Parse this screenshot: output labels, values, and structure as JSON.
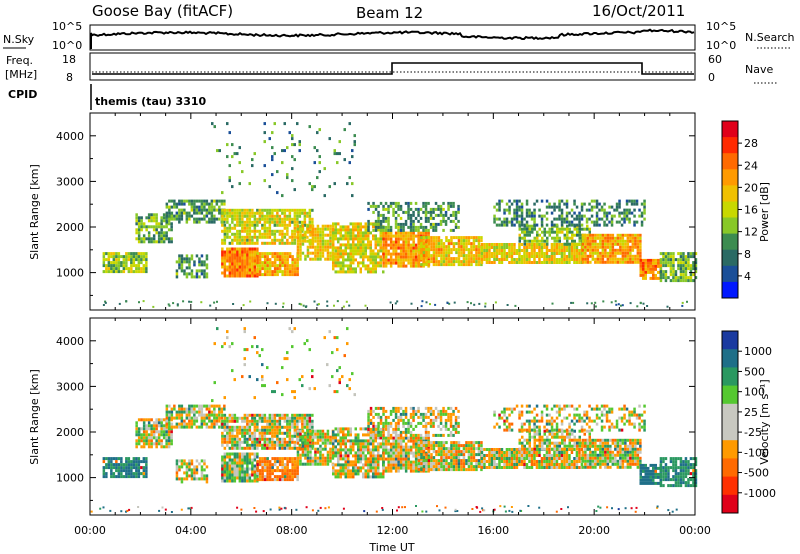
{
  "header": {
    "station": "Goose Bay (fitACF)",
    "beam": "Beam 12",
    "date": "16/Oct/2011"
  },
  "top_panels": {
    "noise": {
      "left_label": "N.Sky",
      "left_ticks": [
        "10^5",
        "10^0"
      ],
      "right_label": "N.Search",
      "right_ticks": [
        "10^5",
        "10^0"
      ]
    },
    "freq": {
      "left_label_1": "Freq.",
      "left_label_2": "[MHz]",
      "left_ticks": [
        "18",
        "8"
      ],
      "right_label": "Nave",
      "right_ticks": [
        "60",
        "0"
      ]
    },
    "cpid": {
      "left_label": "CPID",
      "value": "themis (tau) 3310"
    }
  },
  "x_axis": {
    "label": "Time UT",
    "ticks": [
      "00:00",
      "04:00",
      "08:00",
      "12:00",
      "16:00",
      "20:00",
      "00:00"
    ]
  },
  "colorbars": {
    "power": {
      "label": "Power [dB]",
      "ticks": [
        "28",
        "24",
        "20",
        "16",
        "12",
        "8",
        "4"
      ],
      "colors": [
        "#e0001a",
        "#ff2a00",
        "#ff6a00",
        "#ff9a00",
        "#f0c000",
        "#c8d800",
        "#88c828",
        "#3c8c50",
        "#2a6a64",
        "#1a4f98",
        "#0018ff"
      ]
    },
    "velocity": {
      "label": "Velocity [m s⁻¹]",
      "ticks": [
        "1000",
        "500",
        "100",
        "25",
        "-25",
        "-100",
        "-500",
        "-1000"
      ],
      "colors": [
        "#1a3aa0",
        "#1f6f88",
        "#2a9860",
        "#55c830",
        "#c8c8c0",
        "#c8c8c0",
        "#ff9a00",
        "#ff6a00",
        "#ff3000",
        "#e0001a"
      ]
    }
  },
  "chart_data": [
    {
      "type": "heatmap",
      "title": "Power",
      "ylabel": "Slant Range [km]",
      "xlabel": "",
      "x_ticks": [
        "00:00",
        "04:00",
        "08:00",
        "12:00",
        "16:00",
        "20:00",
        "00:00"
      ],
      "y_ticks": [
        1000,
        2000,
        3000,
        4000
      ],
      "xlim": [
        0,
        24
      ],
      "ylim": [
        180,
        4500
      ],
      "unit": "dB",
      "clim": [
        0,
        30
      ],
      "regions": [
        {
          "t": [
            0.5,
            2.2
          ],
          "r": [
            1000,
            1450
          ],
          "v": 13,
          "d": 0.85
        },
        {
          "t": [
            1.8,
            3.2
          ],
          "r": [
            1700,
            2300
          ],
          "v": 10,
          "d": 0.7
        },
        {
          "t": [
            3.0,
            5.3
          ],
          "r": [
            2100,
            2600
          ],
          "v": 9,
          "d": 0.7
        },
        {
          "t": [
            3.4,
            4.6
          ],
          "r": [
            900,
            1400
          ],
          "v": 9,
          "d": 0.55
        },
        {
          "t": [
            5.2,
            6.6
          ],
          "r": [
            950,
            1550
          ],
          "v": 22,
          "d": 0.95
        },
        {
          "t": [
            6.6,
            8.2
          ],
          "r": [
            950,
            1450
          ],
          "v": 20,
          "d": 0.9
        },
        {
          "t": [
            5.2,
            8.8
          ],
          "r": [
            1650,
            2400
          ],
          "v": 15,
          "d": 0.8
        },
        {
          "t": [
            8.2,
            9.6
          ],
          "r": [
            1300,
            2050
          ],
          "v": 17,
          "d": 0.8
        },
        {
          "t": [
            9.6,
            11.6
          ],
          "r": [
            1000,
            2100
          ],
          "v": 16,
          "d": 0.8
        },
        {
          "t": [
            11.6,
            13.4
          ],
          "r": [
            1150,
            1900
          ],
          "v": 21,
          "d": 0.9
        },
        {
          "t": [
            11.0,
            14.6
          ],
          "r": [
            1950,
            2550
          ],
          "v": 9,
          "d": 0.55
        },
        {
          "t": [
            13.0,
            15.5
          ],
          "r": [
            1150,
            1800
          ],
          "v": 18,
          "d": 0.9
        },
        {
          "t": [
            15.5,
            19.5
          ],
          "r": [
            1200,
            1650
          ],
          "v": 17,
          "d": 0.9
        },
        {
          "t": [
            17.0,
            19.8
          ],
          "r": [
            1650,
            2050
          ],
          "v": 12,
          "d": 0.7
        },
        {
          "t": [
            19.5,
            21.8
          ],
          "r": [
            1250,
            1850
          ],
          "v": 20,
          "d": 0.9
        },
        {
          "t": [
            16.0,
            22.0
          ],
          "r": [
            2050,
            2600
          ],
          "v": 8,
          "d": 0.45
        },
        {
          "t": [
            21.8,
            22.6
          ],
          "r": [
            850,
            1300
          ],
          "v": 22,
          "d": 0.9
        },
        {
          "t": [
            22.6,
            24.0
          ],
          "r": [
            850,
            1450
          ],
          "v": 11,
          "d": 0.8
        },
        {
          "t": [
            4.8,
            10.5
          ],
          "r": [
            2700,
            4300
          ],
          "v": 8,
          "d": 0.05
        }
      ]
    },
    {
      "type": "heatmap",
      "title": "Velocity",
      "ylabel": "Slant Range [km]",
      "xlabel": "Time UT",
      "x_ticks": [
        "00:00",
        "04:00",
        "08:00",
        "12:00",
        "16:00",
        "20:00",
        "00:00"
      ],
      "y_ticks": [
        1000,
        2000,
        3000,
        4000
      ],
      "xlim": [
        0,
        24
      ],
      "ylim": [
        180,
        4500
      ],
      "unit": "m s^-1",
      "clim": [
        -1000,
        1000
      ],
      "regions": [
        {
          "t": [
            0.5,
            2.2
          ],
          "r": [
            1000,
            1450
          ],
          "v": 320,
          "d": 0.85
        },
        {
          "t": [
            1.8,
            3.2
          ],
          "r": [
            1700,
            2300
          ],
          "v": 0,
          "d": 0.75
        },
        {
          "t": [
            3.0,
            5.3
          ],
          "r": [
            2100,
            2600
          ],
          "v": 0,
          "d": 0.75
        },
        {
          "t": [
            3.4,
            4.6
          ],
          "r": [
            900,
            1400
          ],
          "v": 0,
          "d": 0.5
        },
        {
          "t": [
            5.2,
            6.6
          ],
          "r": [
            950,
            1550
          ],
          "v": 60,
          "d": 0.9
        },
        {
          "t": [
            6.6,
            8.2
          ],
          "r": [
            950,
            1450
          ],
          "v": -120,
          "d": 0.85
        },
        {
          "t": [
            5.2,
            8.8
          ],
          "r": [
            1650,
            2400
          ],
          "v": 0,
          "d": 0.85
        },
        {
          "t": [
            8.2,
            9.6
          ],
          "r": [
            1300,
            2050
          ],
          "v": 0,
          "d": 0.8
        },
        {
          "t": [
            9.6,
            11.6
          ],
          "r": [
            1000,
            2100
          ],
          "v": 0,
          "d": 0.8
        },
        {
          "t": [
            11.6,
            13.4
          ],
          "r": [
            1150,
            1900
          ],
          "v": 0,
          "d": 0.9
        },
        {
          "t": [
            11.0,
            14.6
          ],
          "r": [
            1950,
            2550
          ],
          "v": 0,
          "d": 0.6
        },
        {
          "t": [
            13.0,
            15.5
          ],
          "r": [
            1150,
            1800
          ],
          "v": 0,
          "d": 0.9
        },
        {
          "t": [
            15.5,
            19.5
          ],
          "r": [
            1200,
            1650
          ],
          "v": 0,
          "d": 0.9
        },
        {
          "t": [
            17.0,
            19.8
          ],
          "r": [
            1650,
            2050
          ],
          "v": 0,
          "d": 0.7
        },
        {
          "t": [
            19.5,
            21.8
          ],
          "r": [
            1250,
            1850
          ],
          "v": 0,
          "d": 0.9
        },
        {
          "t": [
            16.0,
            22.0
          ],
          "r": [
            2050,
            2600
          ],
          "v": 0,
          "d": 0.4
        },
        {
          "t": [
            21.8,
            22.6
          ],
          "r": [
            850,
            1300
          ],
          "v": 350,
          "d": 0.9
        },
        {
          "t": [
            22.6,
            24.0
          ],
          "r": [
            850,
            1450
          ],
          "v": 250,
          "d": 0.8
        },
        {
          "t": [
            4.8,
            10.5
          ],
          "r": [
            2700,
            4300
          ],
          "v": 0,
          "d": 0.05
        }
      ]
    }
  ]
}
